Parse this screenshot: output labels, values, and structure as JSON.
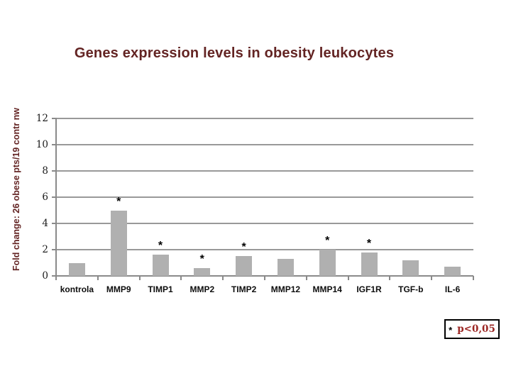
{
  "chart": {
    "title": "Genes expression levels in obesity leukocytes",
    "ylabel": "Fold change: 26 obese pts/19 contr nw"
  },
  "chart_data": {
    "type": "bar",
    "title": "Genes expression levels in obesity leukocytes",
    "xlabel": "",
    "ylabel": "Fold change: 26 obese pts/19 contr nw",
    "categories": [
      "kontrola",
      "MMP9",
      "TIMP1",
      "MMP2",
      "TIMP2",
      "MMP12",
      "MMP14",
      "IGF1R",
      "TGF-b",
      "IL-6"
    ],
    "values": [
      1.0,
      5.0,
      1.6,
      0.6,
      1.5,
      1.3,
      2.0,
      1.8,
      1.2,
      0.7
    ],
    "significant": [
      false,
      true,
      true,
      true,
      true,
      false,
      true,
      true,
      false,
      false
    ],
    "significance_marker": "*",
    "ylim": [
      0,
      12
    ],
    "ytick_step": 2,
    "yticks": [
      0,
      2,
      4,
      6,
      8,
      10,
      12
    ],
    "grid": true,
    "legend_position": "bottom-right",
    "annotation": "* p<0,05"
  },
  "legend": {
    "symbol": "*",
    "text": "p<0,05"
  },
  "colors": {
    "title": "#632423",
    "ylabel": "#632423",
    "bar": "#b0b0b0",
    "gridline": "#999999",
    "axis": "#8a8a8a",
    "tick_label": "#1a1a1a",
    "category_label": "#0d0d0d",
    "asterisk": "#000000",
    "legend_text": "#9c2724",
    "legend_border": "#000000",
    "background": "#ffffff"
  }
}
